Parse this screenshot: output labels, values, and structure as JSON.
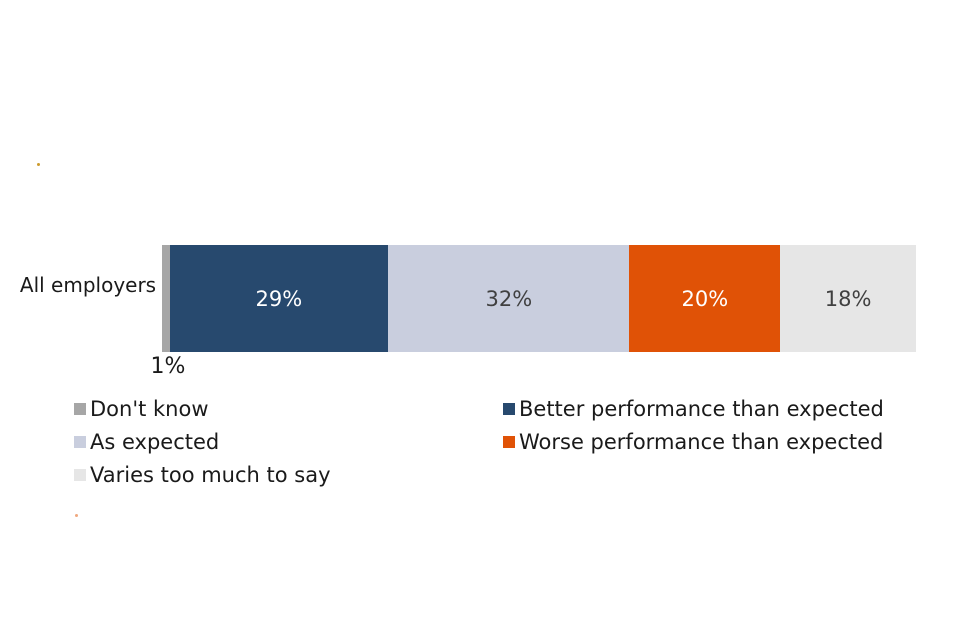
{
  "chart_data": {
    "type": "bar",
    "variant": "horizontal-stacked",
    "title": "",
    "categories": [
      "All employers"
    ],
    "series": [
      {
        "name": "Don't know",
        "value": 1,
        "data_label": "1%",
        "color": "#A6A6A6",
        "label_placement": "below-bar",
        "label_color": "#1A1A1A"
      },
      {
        "name": "Better performance than expected",
        "value": 29,
        "data_label": "29%",
        "color": "#27496E",
        "label_placement": "inside",
        "label_color": "#FFFFFF"
      },
      {
        "name": "As expected",
        "value": 32,
        "data_label": "32%",
        "color": "#C9CEDE",
        "label_placement": "inside",
        "label_color": "#404040"
      },
      {
        "name": "Worse performance than expected",
        "value": 20,
        "data_label": "20%",
        "color": "#E05206",
        "label_placement": "inside",
        "label_color": "#FFFFFF"
      },
      {
        "name": "Varies too much to say",
        "value": 18,
        "data_label": "18%",
        "color": "#E6E6E6",
        "label_placement": "inside",
        "label_color": "#404040"
      }
    ],
    "xlim": [
      0,
      100
    ],
    "grid": false,
    "axes_visible": false,
    "legend_position": "bottom-two-columns"
  },
  "legend": {
    "columns": [
      {
        "items": [
          {
            "label": "Don't know",
            "color": "#A6A6A6"
          },
          {
            "label": "As expected",
            "color": "#C9CEDE"
          },
          {
            "label": "Varies too much to say",
            "color": "#E6E6E6"
          }
        ]
      },
      {
        "items": [
          {
            "label": "Better performance than expected",
            "color": "#27496E"
          },
          {
            "label": "Worse performance than expected",
            "color": "#E05206"
          }
        ]
      }
    ]
  }
}
